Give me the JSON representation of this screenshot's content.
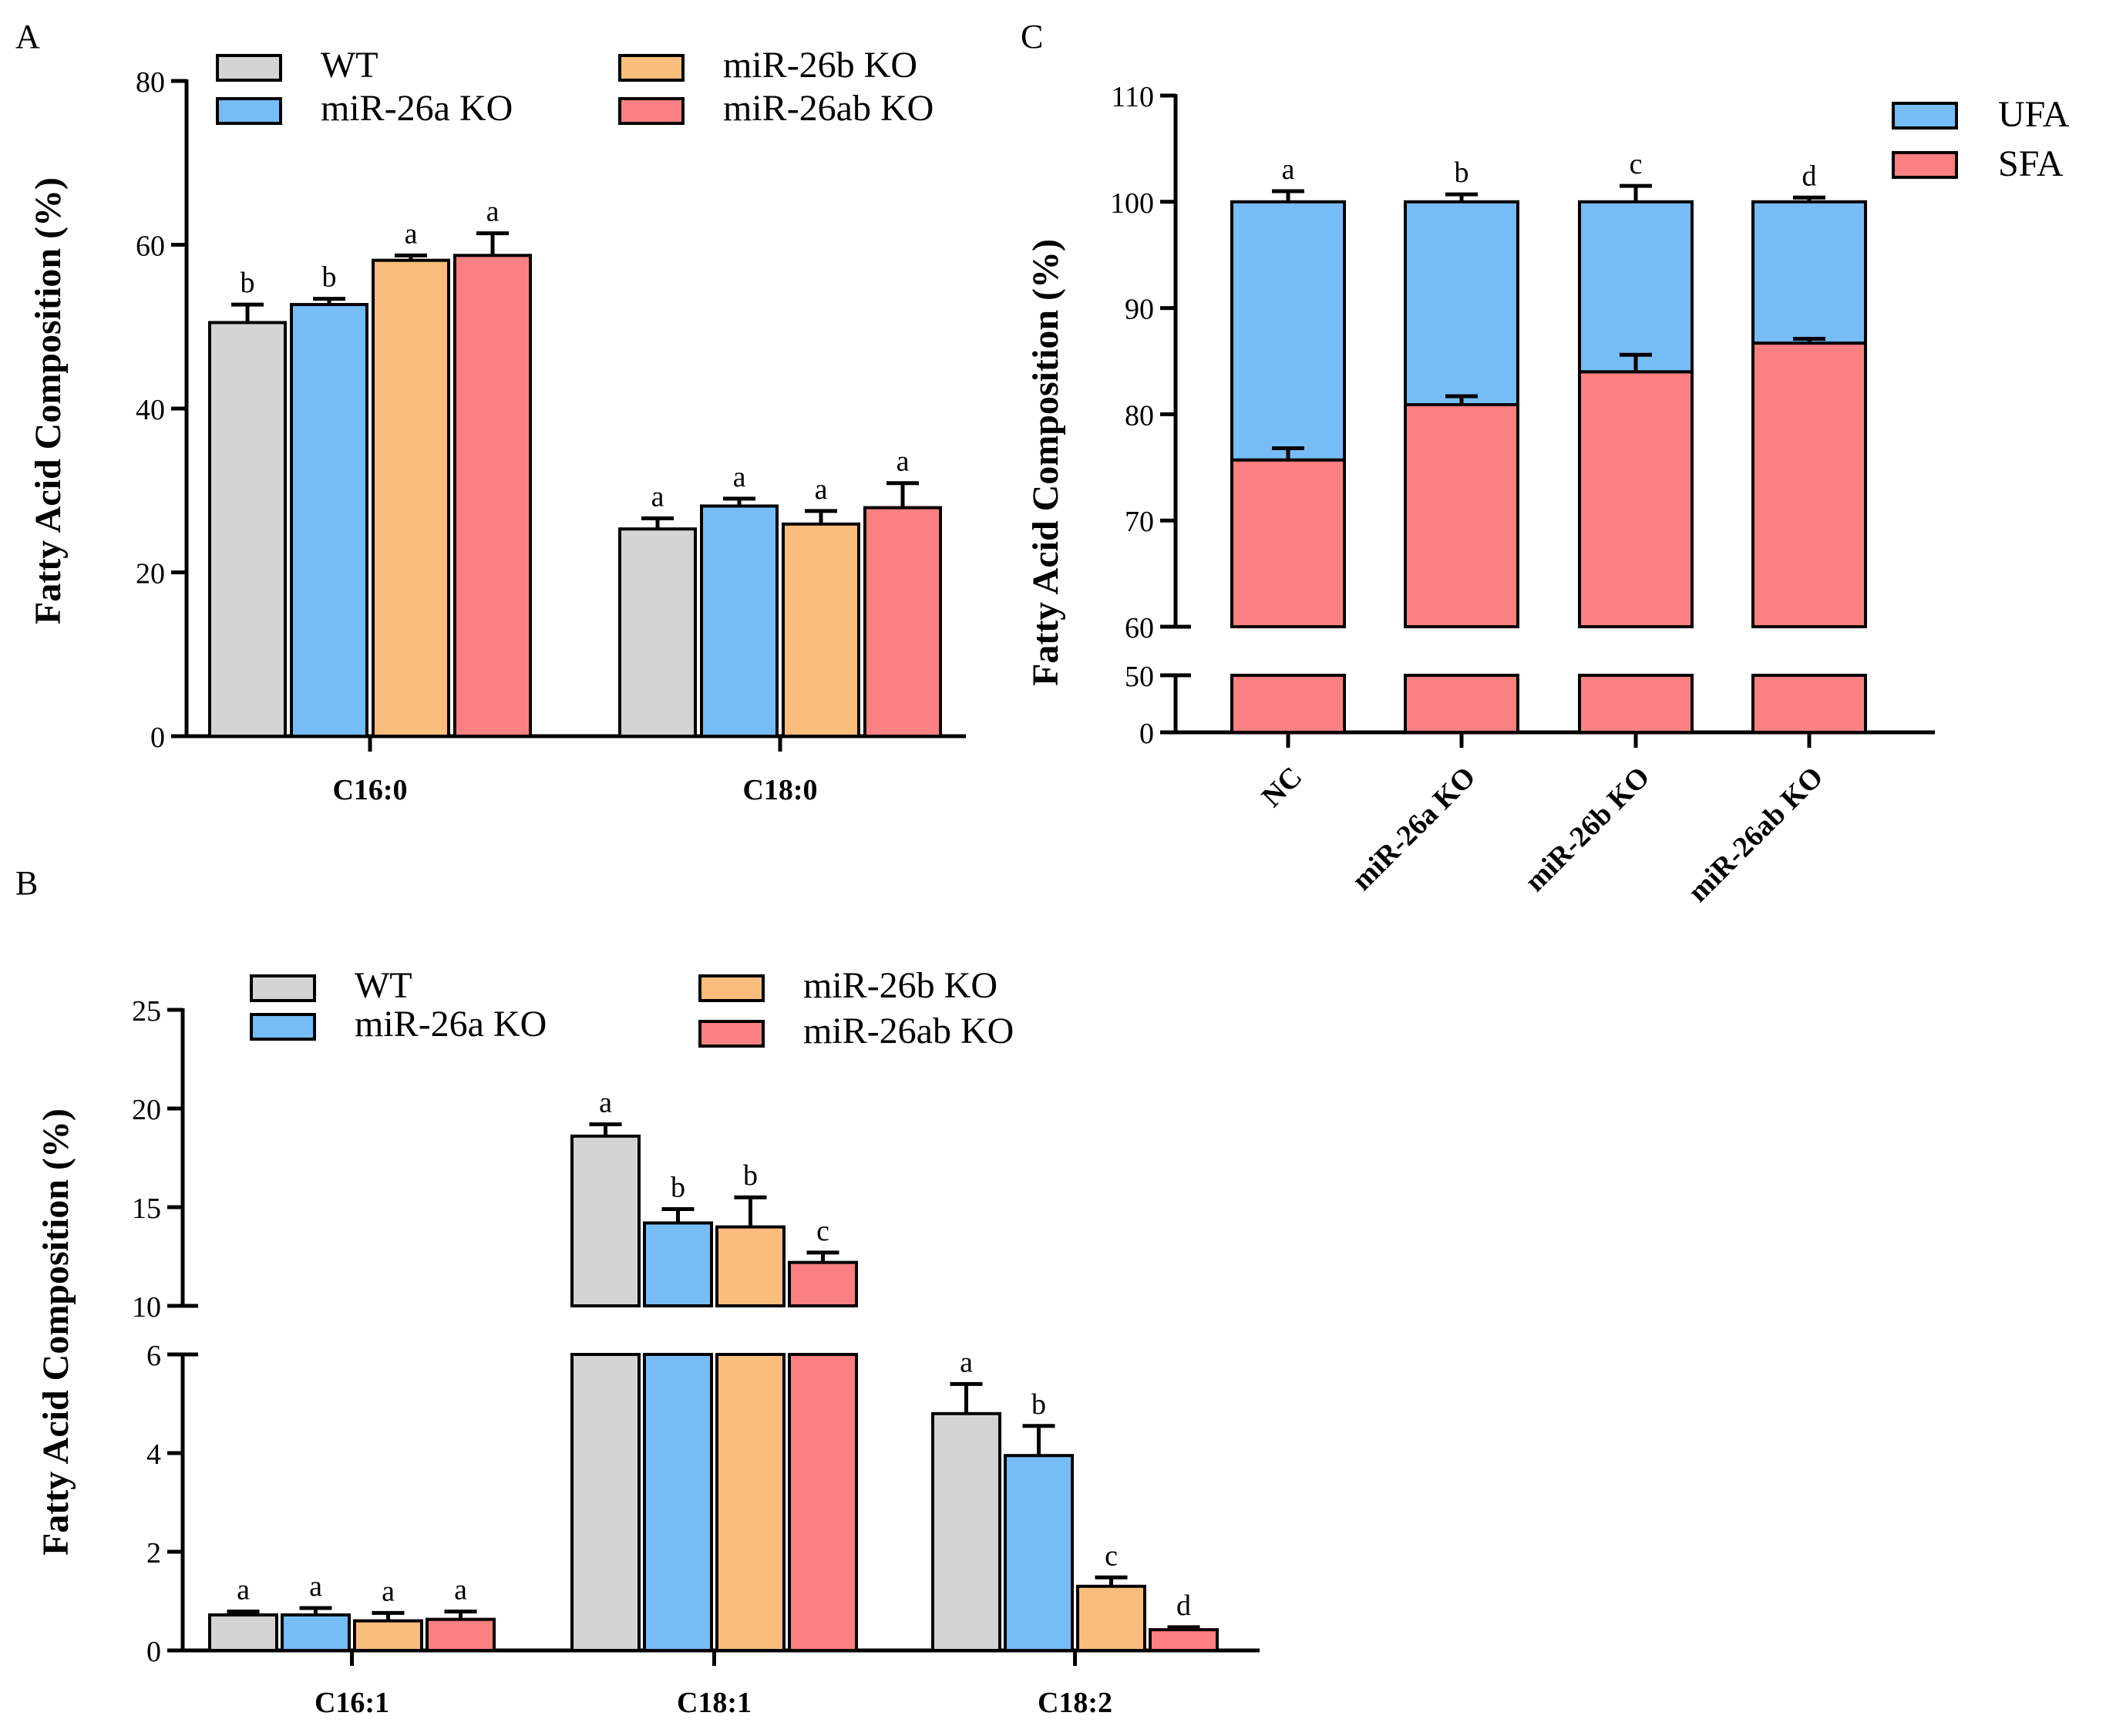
{
  "colors": {
    "WT": "#d4d4d4",
    "miR-26a KO": "#76bdf8",
    "miR-26b KO": "#fbbd7d",
    "miR-26ab KO": "#fb8082",
    "UFA": "#76bdf8",
    "SFA": "#fb8082"
  },
  "chart_data": [
    {
      "panel": "A",
      "type": "bar",
      "ylabel": "Fatty Acid Composition (%)",
      "ylim": [
        0,
        80
      ],
      "yticks": [
        "0",
        "20",
        "40",
        "60",
        "80"
      ],
      "legend": [
        "WT",
        "miR-26a KO",
        "miR-26b KO",
        "miR-26ab KO"
      ],
      "categories": [
        "C16:0",
        "C18:0"
      ],
      "series": [
        {
          "name": "WT",
          "values": [
            50.5,
            25.3
          ],
          "errors": [
            2.2,
            1.3
          ],
          "letters": [
            "b",
            "a"
          ]
        },
        {
          "name": "miR-26a KO",
          "values": [
            52.7,
            28.1
          ],
          "errors": [
            0.7,
            0.9
          ],
          "letters": [
            "b",
            "a"
          ]
        },
        {
          "name": "miR-26b KO",
          "values": [
            58.1,
            25.9
          ],
          "errors": [
            0.6,
            1.6
          ],
          "letters": [
            "a",
            "a"
          ]
        },
        {
          "name": "miR-26ab KO",
          "values": [
            58.7,
            27.9
          ],
          "errors": [
            2.7,
            3.0
          ],
          "letters": [
            "a",
            "a"
          ]
        }
      ]
    },
    {
      "panel": "B",
      "type": "bar",
      "ylabel": "Fatty Acid Composition (%)",
      "axis_break": [
        6,
        10
      ],
      "ylim": [
        0,
        25
      ],
      "yticks_lower": [
        "0",
        "2",
        "4",
        "6"
      ],
      "yticks_upper": [
        "10",
        "15",
        "20",
        "25"
      ],
      "legend": [
        "WT",
        "miR-26a KO",
        "miR-26b KO",
        "miR-26ab KO"
      ],
      "categories": [
        "C16:1",
        "C18:1",
        "C18:2"
      ],
      "series": [
        {
          "name": "WT",
          "values": [
            0.72,
            18.6,
            4.8
          ],
          "errors": [
            0.07,
            0.6,
            0.6
          ],
          "letters": [
            "a",
            "a",
            "a"
          ]
        },
        {
          "name": "miR-26a KO",
          "values": [
            0.72,
            14.2,
            3.95
          ],
          "errors": [
            0.14,
            0.7,
            0.6
          ],
          "letters": [
            "a",
            "b",
            "b"
          ]
        },
        {
          "name": "miR-26b KO",
          "values": [
            0.6,
            14.0,
            1.3
          ],
          "errors": [
            0.16,
            1.5,
            0.18
          ],
          "letters": [
            "a",
            "b",
            "c"
          ]
        },
        {
          "name": "miR-26ab KO",
          "values": [
            0.63,
            12.2,
            0.42
          ],
          "errors": [
            0.16,
            0.5,
            0.05
          ],
          "letters": [
            "a",
            "c",
            "d"
          ]
        }
      ]
    },
    {
      "panel": "C",
      "type": "bar",
      "stacked": true,
      "ylabel": "Fatty Acid Composition (%)",
      "axis_break": [
        50,
        60
      ],
      "ylim": [
        0,
        110
      ],
      "yticks_lower": [
        "0",
        "50"
      ],
      "yticks_upper": [
        "60",
        "70",
        "80",
        "90",
        "100",
        "110"
      ],
      "legend": [
        "UFA",
        "SFA"
      ],
      "categories": [
        "NC",
        "miR-26a KO",
        "miR-26b KO",
        "miR-26ab KO"
      ],
      "series": [
        {
          "name": "SFA",
          "values": [
            75.7,
            80.9,
            84.0,
            86.7
          ],
          "errors": [
            1.1,
            0.8,
            1.6,
            0.4
          ]
        },
        {
          "name": "UFA",
          "values": [
            24.3,
            19.1,
            16.0,
            13.3
          ],
          "errors": [
            1.0,
            0.7,
            1.5,
            0.4
          ]
        }
      ],
      "letters": [
        "a",
        "b",
        "c",
        "d"
      ]
    }
  ]
}
